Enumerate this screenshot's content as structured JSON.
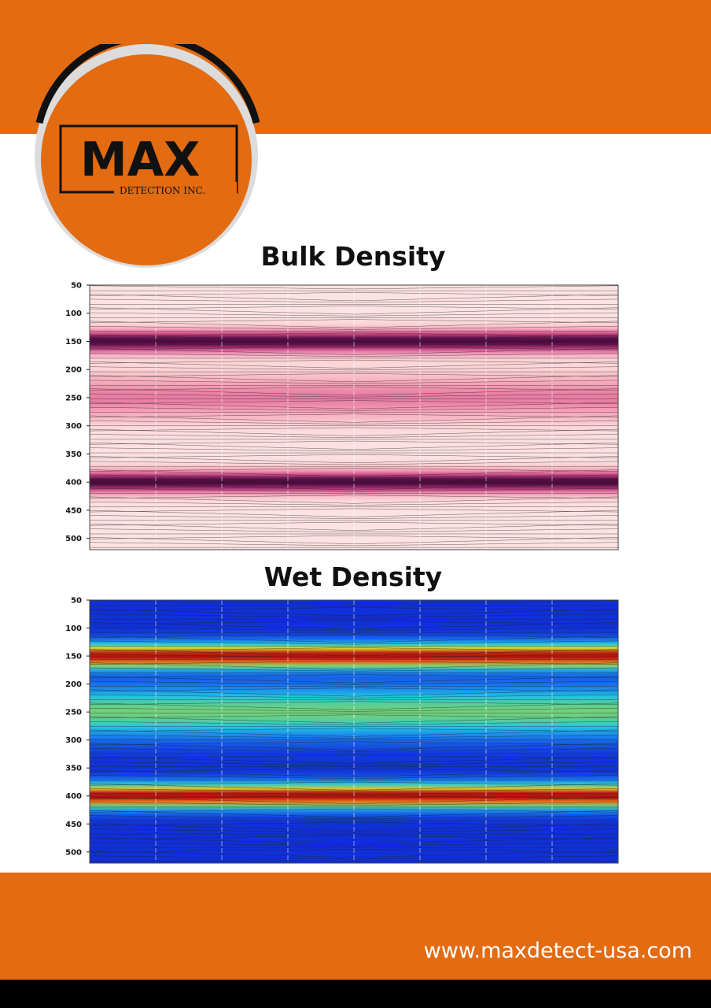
{
  "header": {
    "brand_color": "#e36b12"
  },
  "logo": {
    "wordmark": "MAX",
    "tagline": "DETECTION INC."
  },
  "chart_data": [
    {
      "type": "heatmap",
      "title": "Bulk Density",
      "colormap": "pink-white-magenta",
      "y_ticks": [
        50,
        100,
        150,
        200,
        250,
        300,
        350,
        400,
        450,
        500
      ],
      "ylim": [
        50,
        520
      ],
      "x_tick_labels": [],
      "high_bands_y": [
        150,
        400
      ],
      "secondary_peak_y": 250,
      "grid": true
    },
    {
      "type": "heatmap",
      "title": "Wet Density",
      "colormap": "jet",
      "y_ticks": [
        50,
        100,
        150,
        200,
        250,
        300,
        350,
        400,
        450,
        500
      ],
      "ylim": [
        50,
        520
      ],
      "x_tick_labels": [],
      "high_bands_y": [
        150,
        400
      ],
      "secondary_peak_y": 250,
      "grid": true
    }
  ],
  "footer": {
    "website": "www.maxdetect-usa.com"
  }
}
